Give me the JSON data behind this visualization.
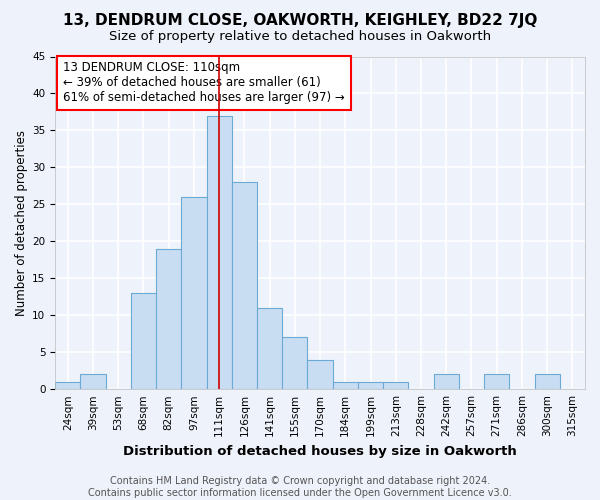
{
  "title1": "13, DENDRUM CLOSE, OAKWORTH, KEIGHLEY, BD22 7JQ",
  "title2": "Size of property relative to detached houses in Oakworth",
  "xlabel": "Distribution of detached houses by size in Oakworth",
  "ylabel": "Number of detached properties",
  "bar_labels": [
    "24sqm",
    "39sqm",
    "53sqm",
    "68sqm",
    "82sqm",
    "97sqm",
    "111sqm",
    "126sqm",
    "141sqm",
    "155sqm",
    "170sqm",
    "184sqm",
    "199sqm",
    "213sqm",
    "228sqm",
    "242sqm",
    "257sqm",
    "271sqm",
    "286sqm",
    "300sqm",
    "315sqm"
  ],
  "bar_values": [
    1,
    2,
    0,
    13,
    19,
    26,
    37,
    28,
    11,
    7,
    4,
    1,
    1,
    1,
    0,
    2,
    0,
    2,
    0,
    2,
    0
  ],
  "bar_color": "#c9ddf2",
  "bar_edge_color": "#6aaad4",
  "highlight_bar_index": 6,
  "highlight_line_color": "#cc0000",
  "annotation_box_text": "13 DENDRUM CLOSE: 110sqm\n← 39% of detached houses are smaller (61)\n61% of semi-detached houses are larger (97) →",
  "ylim": [
    0,
    45
  ],
  "yticks": [
    0,
    5,
    10,
    15,
    20,
    25,
    30,
    35,
    40,
    45
  ],
  "bg_color": "#eef2fa",
  "grid_color": "#ffffff",
  "footer_text": "Contains HM Land Registry data © Crown copyright and database right 2024.\nContains public sector information licensed under the Open Government Licence v3.0.",
  "title1_fontsize": 11,
  "title2_fontsize": 9.5,
  "xlabel_fontsize": 9.5,
  "ylabel_fontsize": 8.5,
  "annot_fontsize": 8.5,
  "tick_fontsize": 7.5,
  "footer_fontsize": 7
}
